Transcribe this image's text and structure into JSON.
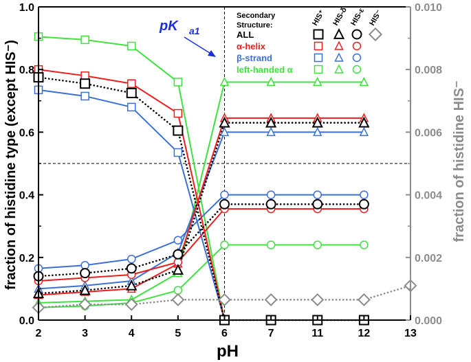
{
  "chart_data": {
    "type": "line",
    "xlabel": "pH",
    "ylabel_left": "fraction of histidine type (except HIS⁻)",
    "ylabel_right": "fraction of histidine HIS⁻",
    "x_categories": [
      "2",
      "3",
      "4",
      "5",
      "6",
      "7",
      "11",
      "12",
      "13"
    ],
    "ylim_left": [
      0,
      1.0
    ],
    "ylim_right": [
      0,
      0.01
    ],
    "yticks_left": [
      "0.0",
      "0.2",
      "0.4",
      "0.6",
      "0.8",
      "1.0"
    ],
    "yticks_right": [
      "0.000",
      "0.002",
      "0.004",
      "0.006",
      "0.008",
      "0.010"
    ],
    "reference_lines": {
      "vertical_x": "6",
      "horizontal_y": 0.5
    },
    "annotation": {
      "label": "pK",
      "subscript": "a1"
    },
    "legend": {
      "title": "Secondary\nStructure:",
      "column_headers": [
        "HIS⁺",
        "HIS-δ",
        "HIS-ε",
        "HIS⁻"
      ],
      "rows": [
        {
          "label": "ALL",
          "color": "#000000"
        },
        {
          "label": "α-helix",
          "color": "#ee1c1c"
        },
        {
          "label": "β-strand",
          "color": "#3a6fd8"
        },
        {
          "label": "left-handed α",
          "color": "#3de23d"
        }
      ]
    },
    "series": [
      {
        "name": "ALL HIS+",
        "structure": "ALL",
        "species": "HIS+",
        "color": "#000000",
        "dash": "dot",
        "marker": "square",
        "axis": "left",
        "x": [
          "2",
          "3",
          "4",
          "5",
          "6",
          "7",
          "11",
          "12"
        ],
        "values": [
          0.775,
          0.755,
          0.725,
          0.605,
          0.0,
          0.0,
          0.0,
          0.0
        ]
      },
      {
        "name": "ALL HIS-delta",
        "structure": "ALL",
        "species": "HIS-delta",
        "color": "#000000",
        "dash": "dot",
        "marker": "triangle",
        "axis": "left",
        "x": [
          "2",
          "3",
          "4",
          "5",
          "6",
          "7",
          "11",
          "12"
        ],
        "values": [
          0.085,
          0.095,
          0.11,
          0.16,
          0.63,
          0.63,
          0.63,
          0.63
        ]
      },
      {
        "name": "ALL HIS-epsilon",
        "structure": "ALL",
        "species": "HIS-epsilon",
        "color": "#000000",
        "dash": "dot",
        "marker": "circle",
        "axis": "left",
        "x": [
          "2",
          "3",
          "4",
          "5",
          "6",
          "7",
          "11",
          "12"
        ],
        "values": [
          0.14,
          0.15,
          0.165,
          0.21,
          0.37,
          0.37,
          0.37,
          0.37
        ]
      },
      {
        "name": "ALL HIS-",
        "structure": "ALL",
        "species": "HIS-",
        "color": "#8c8c8c",
        "dash": "dot",
        "marker": "diamond",
        "axis": "right",
        "x": [
          "2",
          "3",
          "4",
          "5",
          "6",
          "7",
          "11",
          "12",
          "13"
        ],
        "values": [
          0.0004,
          0.0005,
          0.0005,
          0.00065,
          0.00065,
          0.00065,
          0.00065,
          0.00065,
          0.0011
        ]
      },
      {
        "name": "alpha-helix HIS+",
        "structure": "alpha-helix",
        "species": "HIS+",
        "color": "#ee1c1c",
        "dash": "solid",
        "marker": "square",
        "axis": "left",
        "x": [
          "2",
          "3",
          "4",
          "5",
          "6",
          "7",
          "11",
          "12"
        ],
        "values": [
          0.8,
          0.78,
          0.755,
          0.66,
          0.0,
          0.0,
          0.0,
          0.0
        ]
      },
      {
        "name": "alpha-helix HIS-delta",
        "structure": "alpha-helix",
        "species": "HIS-delta",
        "color": "#ee1c1c",
        "dash": "solid",
        "marker": "triangle",
        "axis": "left",
        "x": [
          "2",
          "3",
          "4",
          "5",
          "6",
          "7",
          "11",
          "12"
        ],
        "values": [
          0.08,
          0.09,
          0.1,
          0.18,
          0.645,
          0.645,
          0.645,
          0.645
        ]
      },
      {
        "name": "alpha-helix HIS-epsilon",
        "structure": "alpha-helix",
        "species": "HIS-epsilon",
        "color": "#ee1c1c",
        "dash": "solid",
        "marker": "circle",
        "axis": "left",
        "x": [
          "2",
          "3",
          "4",
          "5",
          "6",
          "7",
          "11",
          "12"
        ],
        "values": [
          0.125,
          0.135,
          0.145,
          0.185,
          0.355,
          0.355,
          0.355,
          0.355
        ]
      },
      {
        "name": "beta-strand HIS+",
        "structure": "beta-strand",
        "species": "HIS+",
        "color": "#3a6fd8",
        "dash": "solid",
        "marker": "square",
        "axis": "left",
        "x": [
          "2",
          "3",
          "4",
          "5",
          "6",
          "7",
          "11",
          "12"
        ],
        "values": [
          0.735,
          0.715,
          0.68,
          0.535,
          0.0,
          0.0,
          0.0,
          0.0
        ]
      },
      {
        "name": "beta-strand HIS-delta",
        "structure": "beta-strand",
        "species": "HIS-delta",
        "color": "#3a6fd8",
        "dash": "solid",
        "marker": "triangle",
        "axis": "left",
        "x": [
          "2",
          "3",
          "4",
          "5",
          "6",
          "7",
          "11",
          "12"
        ],
        "values": [
          0.1,
          0.11,
          0.125,
          0.215,
          0.6,
          0.6,
          0.6,
          0.6
        ]
      },
      {
        "name": "beta-strand HIS-epsilon",
        "structure": "beta-strand",
        "species": "HIS-epsilon",
        "color": "#3a6fd8",
        "dash": "solid",
        "marker": "circle",
        "axis": "left",
        "x": [
          "2",
          "3",
          "4",
          "5",
          "6",
          "7",
          "11",
          "12"
        ],
        "values": [
          0.165,
          0.175,
          0.195,
          0.255,
          0.4,
          0.4,
          0.4,
          0.4
        ]
      },
      {
        "name": "left-handed alpha HIS+",
        "structure": "left-handed alpha",
        "species": "HIS+",
        "color": "#3de23d",
        "dash": "solid",
        "marker": "square",
        "axis": "left",
        "x": [
          "2",
          "3",
          "4",
          "5",
          "6",
          "7",
          "11",
          "12"
        ],
        "values": [
          0.905,
          0.895,
          0.875,
          0.76,
          0.0,
          0.0,
          0.0,
          0.0
        ]
      },
      {
        "name": "left-handed alpha HIS-delta",
        "structure": "left-handed alpha",
        "species": "HIS-delta",
        "color": "#3de23d",
        "dash": "solid",
        "marker": "triangle",
        "axis": "left",
        "x": [
          "2",
          "3",
          "4",
          "5",
          "6",
          "7",
          "11",
          "12"
        ],
        "values": [
          0.055,
          0.06,
          0.065,
          0.15,
          0.76,
          0.76,
          0.76,
          0.76
        ]
      },
      {
        "name": "left-handed alpha HIS-epsilon",
        "structure": "left-handed alpha",
        "species": "HIS-epsilon",
        "color": "#3de23d",
        "dash": "solid",
        "marker": "circle",
        "axis": "left",
        "x": [
          "2",
          "3",
          "4",
          "5",
          "6",
          "7",
          "11",
          "12"
        ],
        "values": [
          0.04,
          0.045,
          0.055,
          0.095,
          0.24,
          0.24,
          0.24,
          0.24
        ]
      }
    ]
  }
}
